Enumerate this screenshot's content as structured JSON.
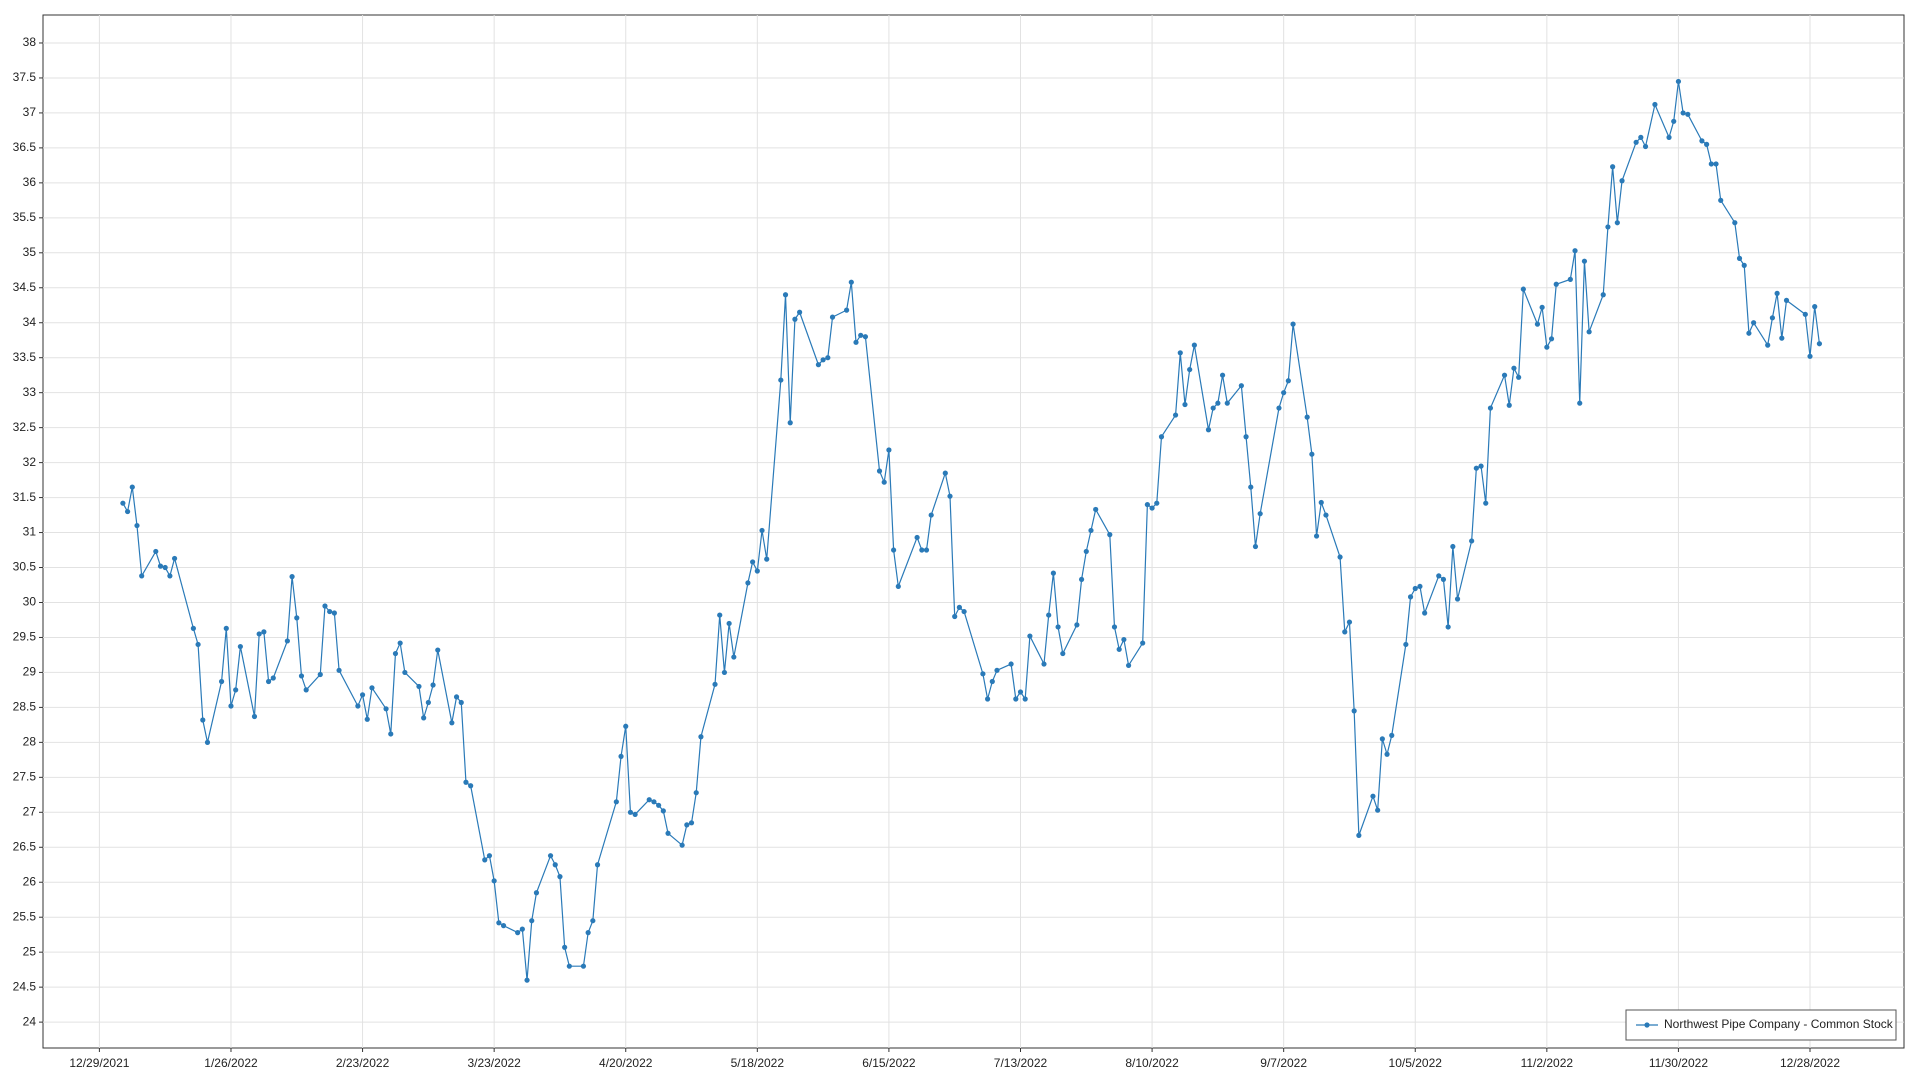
{
  "chart_data": {
    "type": "line",
    "x": [
      "1/3/2022",
      "1/4/2022",
      "1/5/2022",
      "1/6/2022",
      "1/7/2022",
      "1/10/2022",
      "1/11/2022",
      "1/12/2022",
      "1/13/2022",
      "1/14/2022",
      "1/18/2022",
      "1/19/2022",
      "1/20/2022",
      "1/21/2022",
      "1/24/2022",
      "1/25/2022",
      "1/26/2022",
      "1/27/2022",
      "1/28/2022",
      "1/31/2022",
      "2/1/2022",
      "2/2/2022",
      "2/3/2022",
      "2/4/2022",
      "2/7/2022",
      "2/8/2022",
      "2/9/2022",
      "2/10/2022",
      "2/11/2022",
      "2/14/2022",
      "2/15/2022",
      "2/16/2022",
      "2/17/2022",
      "2/18/2022",
      "2/22/2022",
      "2/23/2022",
      "2/24/2022",
      "2/25/2022",
      "2/28/2022",
      "3/1/2022",
      "3/2/2022",
      "3/3/2022",
      "3/4/2022",
      "3/7/2022",
      "3/8/2022",
      "3/9/2022",
      "3/10/2022",
      "3/11/2022",
      "3/14/2022",
      "3/15/2022",
      "3/16/2022",
      "3/17/2022",
      "3/18/2022",
      "3/21/2022",
      "3/22/2022",
      "3/23/2022",
      "3/24/2022",
      "3/25/2022",
      "3/28/2022",
      "3/29/2022",
      "3/30/2022",
      "3/31/2022",
      "4/1/2022",
      "4/4/2022",
      "4/5/2022",
      "4/6/2022",
      "4/7/2022",
      "4/8/2022",
      "4/11/2022",
      "4/12/2022",
      "4/13/2022",
      "4/14/2022",
      "4/18/2022",
      "4/19/2022",
      "4/20/2022",
      "4/21/2022",
      "4/22/2022",
      "4/25/2022",
      "4/26/2022",
      "4/27/2022",
      "4/28/2022",
      "4/29/2022",
      "5/2/2022",
      "5/3/2022",
      "5/4/2022",
      "5/5/2022",
      "5/6/2022",
      "5/9/2022",
      "5/10/2022",
      "5/11/2022",
      "5/12/2022",
      "5/13/2022",
      "5/16/2022",
      "5/17/2022",
      "5/18/2022",
      "5/19/2022",
      "5/20/2022",
      "5/23/2022",
      "5/24/2022",
      "5/25/2022",
      "5/26/2022",
      "5/27/2022",
      "5/31/2022",
      "6/1/2022",
      "6/2/2022",
      "6/3/2022",
      "6/6/2022",
      "6/7/2022",
      "6/8/2022",
      "6/9/2022",
      "6/10/2022",
      "6/13/2022",
      "6/14/2022",
      "6/15/2022",
      "6/16/2022",
      "6/17/2022",
      "6/21/2022",
      "6/22/2022",
      "6/23/2022",
      "6/24/2022",
      "6/27/2022",
      "6/28/2022",
      "6/29/2022",
      "6/30/2022",
      "7/1/2022",
      "7/5/2022",
      "7/6/2022",
      "7/7/2022",
      "7/8/2022",
      "7/11/2022",
      "7/12/2022",
      "7/13/2022",
      "7/14/2022",
      "7/15/2022",
      "7/18/2022",
      "7/19/2022",
      "7/20/2022",
      "7/21/2022",
      "7/22/2022",
      "7/25/2022",
      "7/26/2022",
      "7/27/2022",
      "7/28/2022",
      "7/29/2022",
      "8/1/2022",
      "8/2/2022",
      "8/3/2022",
      "8/4/2022",
      "8/5/2022",
      "8/8/2022",
      "8/9/2022",
      "8/10/2022",
      "8/11/2022",
      "8/12/2022",
      "8/15/2022",
      "8/16/2022",
      "8/17/2022",
      "8/18/2022",
      "8/19/2022",
      "8/22/2022",
      "8/23/2022",
      "8/24/2022",
      "8/25/2022",
      "8/26/2022",
      "8/29/2022",
      "8/30/2022",
      "8/31/2022",
      "9/1/2022",
      "9/2/2022",
      "9/6/2022",
      "9/7/2022",
      "9/8/2022",
      "9/9/2022",
      "9/12/2022",
      "9/13/2022",
      "9/14/2022",
      "9/15/2022",
      "9/16/2022",
      "9/19/2022",
      "9/20/2022",
      "9/21/2022",
      "9/22/2022",
      "9/23/2022",
      "9/26/2022",
      "9/27/2022",
      "9/28/2022",
      "9/29/2022",
      "9/30/2022",
      "10/3/2022",
      "10/4/2022",
      "10/5/2022",
      "10/6/2022",
      "10/7/2022",
      "10/10/2022",
      "10/11/2022",
      "10/12/2022",
      "10/13/2022",
      "10/14/2022",
      "10/17/2022",
      "10/18/2022",
      "10/19/2022",
      "10/20/2022",
      "10/21/2022",
      "10/24/2022",
      "10/25/2022",
      "10/26/2022",
      "10/27/2022",
      "10/28/2022",
      "10/31/2022",
      "11/1/2022",
      "11/2/2022",
      "11/3/2022",
      "11/4/2022",
      "11/7/2022",
      "11/8/2022",
      "11/9/2022",
      "11/10/2022",
      "11/11/2022",
      "11/14/2022",
      "11/15/2022",
      "11/16/2022",
      "11/17/2022",
      "11/18/2022",
      "11/21/2022",
      "11/22/2022",
      "11/23/2022",
      "11/25/2022",
      "11/28/2022",
      "11/29/2022",
      "11/30/2022",
      "12/1/2022",
      "12/2/2022",
      "12/5/2022",
      "12/6/2022",
      "12/7/2022",
      "12/8/2022",
      "12/9/2022",
      "12/12/2022",
      "12/13/2022",
      "12/14/2022",
      "12/15/2022",
      "12/16/2022",
      "12/19/2022",
      "12/20/2022",
      "12/21/2022",
      "12/22/2022",
      "12/23/2022",
      "12/27/2022",
      "12/28/2022",
      "12/29/2022",
      "12/30/2022"
    ],
    "series": [
      {
        "name": "Northwest Pipe Company - Common Stock",
        "color": "#2a7ab8",
        "values": [
          31.42,
          31.3,
          31.65,
          31.1,
          30.38,
          30.73,
          30.52,
          30.5,
          30.38,
          30.63,
          29.63,
          29.4,
          28.32,
          28.0,
          28.87,
          29.63,
          28.52,
          28.75,
          29.37,
          28.37,
          29.55,
          29.58,
          28.87,
          28.92,
          29.45,
          30.37,
          29.78,
          28.95,
          28.75,
          28.97,
          29.95,
          29.87,
          29.85,
          29.03,
          28.52,
          28.68,
          28.33,
          28.78,
          28.48,
          28.12,
          29.27,
          29.42,
          29.0,
          28.8,
          28.35,
          28.57,
          28.82,
          29.32,
          28.28,
          28.65,
          28.57,
          27.43,
          27.38,
          26.32,
          26.38,
          26.02,
          25.42,
          25.38,
          25.28,
          25.33,
          24.6,
          25.45,
          25.85,
          26.38,
          26.25,
          26.08,
          25.07,
          24.8,
          24.8,
          25.28,
          25.45,
          26.25,
          27.15,
          27.8,
          28.23,
          27.0,
          26.97,
          27.18,
          27.15,
          27.1,
          27.02,
          26.7,
          26.53,
          26.82,
          26.85,
          27.28,
          28.08,
          28.83,
          29.82,
          29.0,
          29.7,
          29.22,
          30.28,
          30.58,
          30.45,
          31.03,
          30.62,
          33.18,
          34.4,
          32.57,
          34.05,
          34.15,
          33.4,
          33.47,
          33.5,
          34.08,
          34.18,
          34.58,
          33.72,
          33.82,
          33.8,
          31.88,
          31.72,
          32.18,
          30.75,
          30.23,
          30.93,
          30.75,
          30.75,
          31.25,
          31.85,
          31.52,
          29.8,
          29.93,
          29.87,
          28.98,
          28.62,
          28.87,
          29.03,
          29.12,
          28.62,
          28.72,
          28.62,
          29.52,
          29.12,
          29.82,
          30.42,
          29.65,
          29.27,
          29.68,
          30.33,
          30.73,
          31.03,
          31.33,
          30.97,
          29.65,
          29.33,
          29.47,
          29.1,
          29.42,
          31.4,
          31.35,
          31.42,
          32.37,
          32.68,
          33.57,
          32.83,
          33.33,
          33.68,
          32.47,
          32.78,
          32.85,
          33.25,
          32.85,
          33.1,
          32.37,
          31.65,
          30.8,
          31.27,
          32.78,
          33.0,
          33.17,
          33.98,
          32.65,
          32.12,
          30.95,
          31.43,
          31.25,
          30.65,
          29.58,
          29.72,
          28.45,
          26.67,
          27.23,
          27.03,
          28.05,
          27.83,
          28.1,
          29.4,
          30.08,
          30.2,
          30.23,
          29.85,
          30.38,
          30.33,
          29.65,
          30.8,
          30.05,
          30.88,
          31.92,
          31.95,
          31.42,
          32.78,
          33.25,
          32.82,
          33.35,
          33.22,
          34.48,
          33.98,
          34.22,
          33.65,
          33.77,
          34.55,
          34.62,
          35.03,
          32.85,
          34.88,
          33.87,
          34.4,
          35.37,
          36.23,
          35.43,
          36.03,
          36.58,
          36.65,
          36.52,
          37.12,
          36.65,
          36.88,
          37.45,
          37.0,
          36.98,
          36.6,
          36.55,
          36.27,
          36.27,
          35.75,
          35.43,
          34.92,
          34.82,
          33.85,
          34.0,
          33.68,
          34.07,
          34.42,
          33.78,
          34.32,
          34.12,
          33.52,
          34.23,
          33.7
        ]
      }
    ],
    "xlim": [
      "12/17/2021",
      "1/17/2023"
    ],
    "xticks": [
      "12/29/2021",
      "1/26/2022",
      "2/23/2022",
      "3/23/2022",
      "4/20/2022",
      "5/18/2022",
      "6/15/2022",
      "7/13/2022",
      "8/10/2022",
      "9/7/2022",
      "10/5/2022",
      "11/2/2022",
      "11/30/2022",
      "12/28/2022"
    ],
    "ylim": [
      23.63,
      38.4
    ],
    "yticks": [
      24,
      24.5,
      25,
      25.5,
      26,
      26.5,
      27,
      27.5,
      28,
      28.5,
      29,
      29.5,
      30,
      30.5,
      31,
      31.5,
      32,
      32.5,
      33,
      33.5,
      34,
      34.5,
      35,
      35.5,
      36,
      36.5,
      37,
      37.5,
      38
    ],
    "grid": true,
    "legend": "lower right"
  }
}
